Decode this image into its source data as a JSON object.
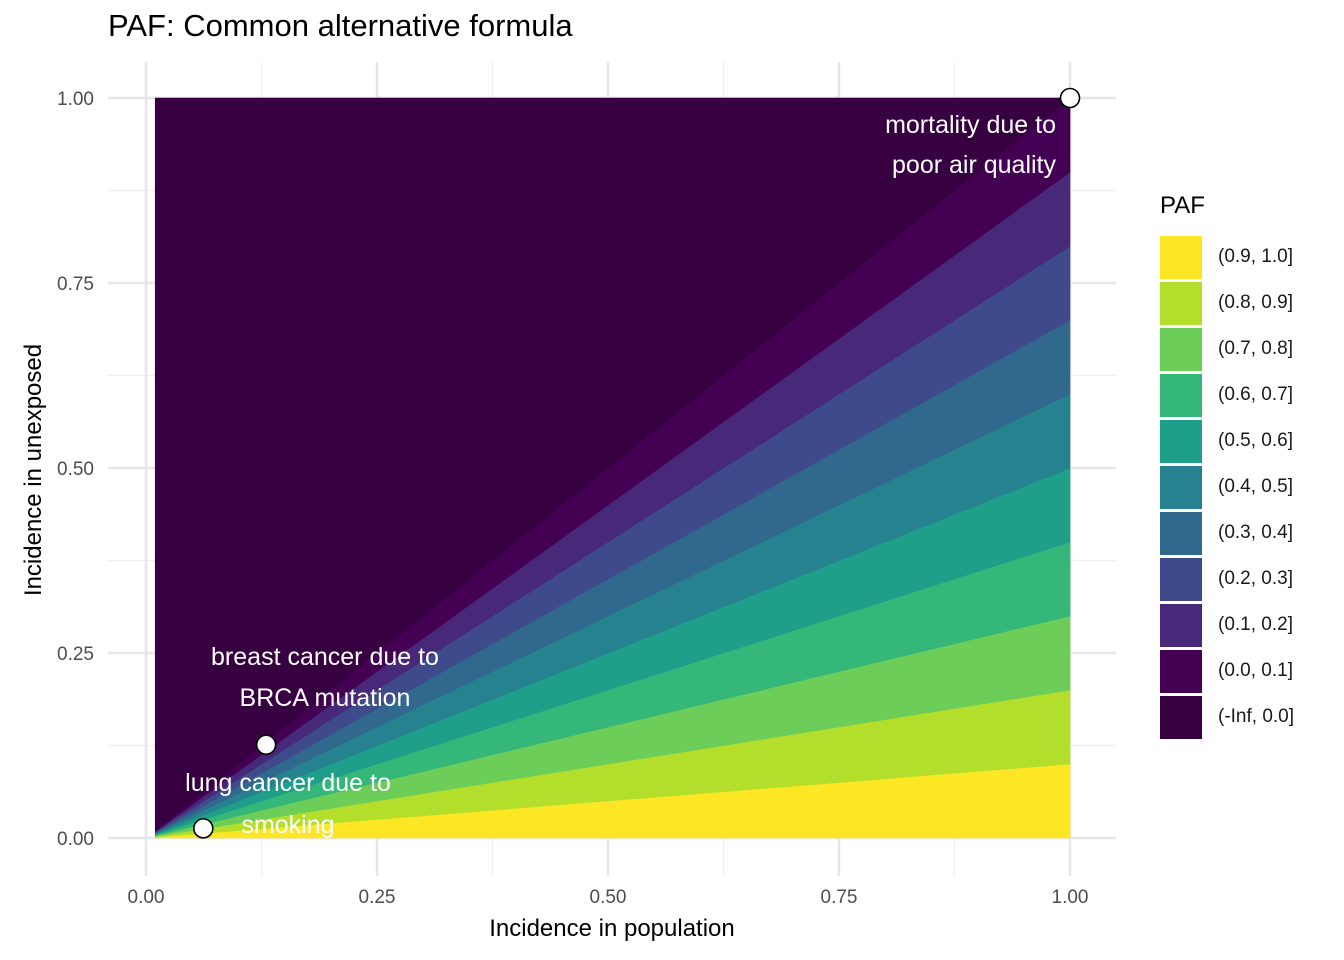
{
  "chart_data": {
    "type": "contour",
    "title": "PAF: Common alternative formula",
    "xlabel": "Incidence in population",
    "ylabel": "Incidence in unexposed",
    "xlim": [
      0,
      1
    ],
    "ylim": [
      0,
      1
    ],
    "x_ticks": [
      "0.00",
      "0.25",
      "0.50",
      "0.75",
      "1.00"
    ],
    "y_ticks": [
      "0.00",
      "0.25",
      "0.50",
      "0.75",
      "1.00"
    ],
    "grid": true,
    "legend_title": "PAF",
    "legend_position": "right",
    "bands": [
      {
        "label": "(0.9, 1.0]",
        "lower": 0.9,
        "upper": 1.0,
        "color": "#FDE725"
      },
      {
        "label": "(0.8, 0.9]",
        "lower": 0.8,
        "upper": 0.9,
        "color": "#B4DE2C"
      },
      {
        "label": "(0.7, 0.8]",
        "lower": 0.7,
        "upper": 0.8,
        "color": "#6DCD59"
      },
      {
        "label": "(0.6, 0.7]",
        "lower": 0.6,
        "upper": 0.7,
        "color": "#35B779"
      },
      {
        "label": "(0.5, 0.6]",
        "lower": 0.5,
        "upper": 0.6,
        "color": "#1F9E89"
      },
      {
        "label": "(0.4, 0.5]",
        "lower": 0.4,
        "upper": 0.5,
        "color": "#26828E"
      },
      {
        "label": "(0.3, 0.4]",
        "lower": 0.3,
        "upper": 0.4,
        "color": "#31688E"
      },
      {
        "label": "(0.2, 0.3]",
        "lower": 0.2,
        "upper": 0.3,
        "color": "#3E4A89"
      },
      {
        "label": "(0.1, 0.2]",
        "lower": 0.1,
        "upper": 0.2,
        "color": "#482878"
      },
      {
        "label": "(0.0, 0.1]",
        "lower": 0.0,
        "upper": 0.1,
        "color": "#440154"
      },
      {
        "label": "(-Inf, 0.0]",
        "lower": null,
        "upper": 0.0,
        "color": "#370040"
      }
    ],
    "points": [
      {
        "name": "mortality-due-to-poor-air-quality",
        "x": 1.0,
        "y": 1.0,
        "label_lines": [
          "mortality due to",
          "poor air quality"
        ]
      },
      {
        "name": "breast-cancer-due-to-brca-mutation",
        "x": 0.13,
        "y": 0.126,
        "label_lines": [
          "breast cancer due to",
          "BRCA mutation"
        ]
      },
      {
        "name": "lung-cancer-due-to-smoking",
        "x": 0.062,
        "y": 0.013,
        "label_lines": [
          "lung cancer due to",
          "smoking"
        ]
      }
    ]
  }
}
